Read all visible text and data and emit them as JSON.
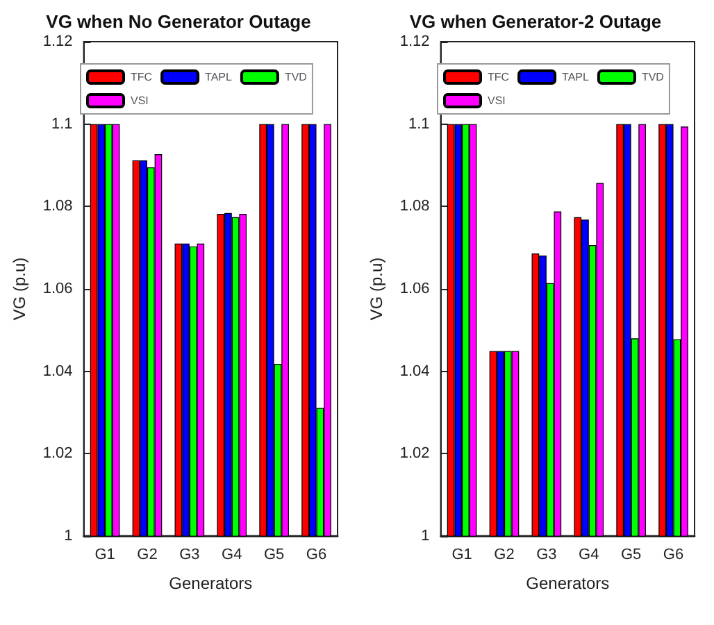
{
  "chart_data": [
    {
      "type": "bar",
      "title": "VG when No Generator Outage",
      "xlabel": "Generators",
      "ylabel": "VG (p.u)",
      "categories": [
        "G1",
        "G2",
        "G3",
        "G4",
        "G5",
        "G6"
      ],
      "ylim": [
        1,
        1.12
      ],
      "yticks": [
        1,
        1.02,
        1.04,
        1.06,
        1.08,
        1.1,
        1.12
      ],
      "grid": false,
      "legend": "top",
      "series": [
        {
          "name": "TFC",
          "color": "#ff0000",
          "values": [
            1.1,
            1.0912,
            1.071,
            1.0782,
            1.1,
            1.1
          ]
        },
        {
          "name": "TAPL",
          "color": "#0000ff",
          "values": [
            1.1,
            1.0912,
            1.071,
            1.0784,
            1.1,
            1.1
          ]
        },
        {
          "name": "TVD",
          "color": "#00ff00",
          "values": [
            1.1,
            1.0895,
            1.0703,
            1.0774,
            1.0418,
            1.0311
          ]
        },
        {
          "name": "VSI",
          "color": "#ff00ff",
          "values": [
            1.1,
            1.0927,
            1.071,
            1.0782,
            1.1,
            1.1
          ]
        }
      ]
    },
    {
      "type": "bar",
      "title": "VG when Generator-2 Outage",
      "xlabel": "Generators",
      "ylabel": "VG (p.u)",
      "categories": [
        "G1",
        "G2",
        "G3",
        "G4",
        "G5",
        "G6"
      ],
      "ylim": [
        1,
        1.12
      ],
      "yticks": [
        1,
        1.02,
        1.04,
        1.06,
        1.08,
        1.1,
        1.12
      ],
      "grid": false,
      "legend": "top",
      "series": [
        {
          "name": "TFC",
          "color": "#ff0000",
          "values": [
            1.1,
            1.0449,
            1.0686,
            1.0774,
            1.1,
            1.1
          ]
        },
        {
          "name": "TAPL",
          "color": "#0000ff",
          "values": [
            1.1,
            1.0449,
            1.0681,
            1.0768,
            1.1,
            1.1
          ]
        },
        {
          "name": "TVD",
          "color": "#00ff00",
          "values": [
            1.1,
            1.0449,
            1.0614,
            1.0706,
            1.048,
            1.0478
          ]
        },
        {
          "name": "VSI",
          "color": "#ff00ff",
          "values": [
            1.1,
            1.0449,
            1.0788,
            1.0857,
            1.1,
            1.0994
          ]
        }
      ]
    }
  ]
}
